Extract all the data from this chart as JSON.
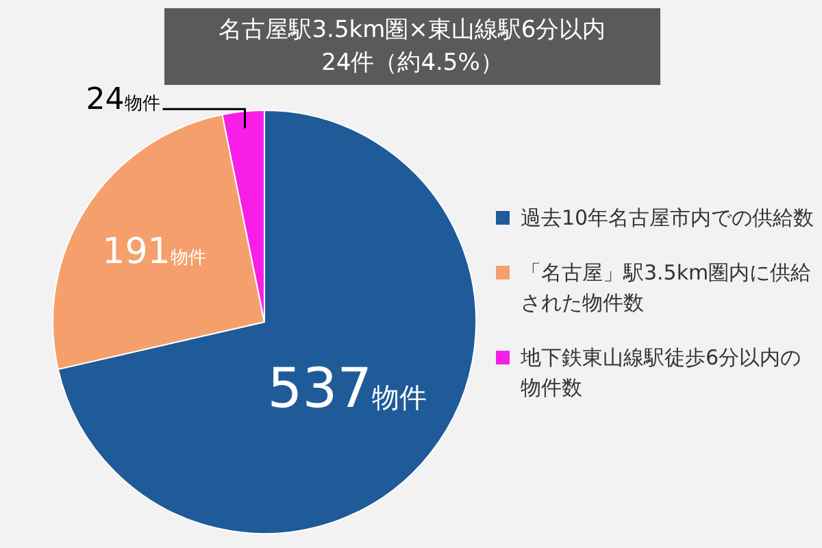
{
  "chart_data": {
    "type": "pie",
    "title": "名古屋駅3.5km圏×東山線駅6分以内",
    "subtitle": "24件（約4.5%）",
    "categories": [
      "過去10年名古屋市内での供給数",
      "「名古屋」駅3.5km圏内に供給された物件数",
      "地下鉄東山線駅徒歩6分以内の物件数"
    ],
    "values": [
      537,
      191,
      24
    ],
    "colors": [
      "#1f5b98",
      "#f5a06c",
      "#f81ee8"
    ],
    "value_labels": [
      "537物件",
      "191物件",
      "24物件"
    ],
    "legend": "right"
  }
}
